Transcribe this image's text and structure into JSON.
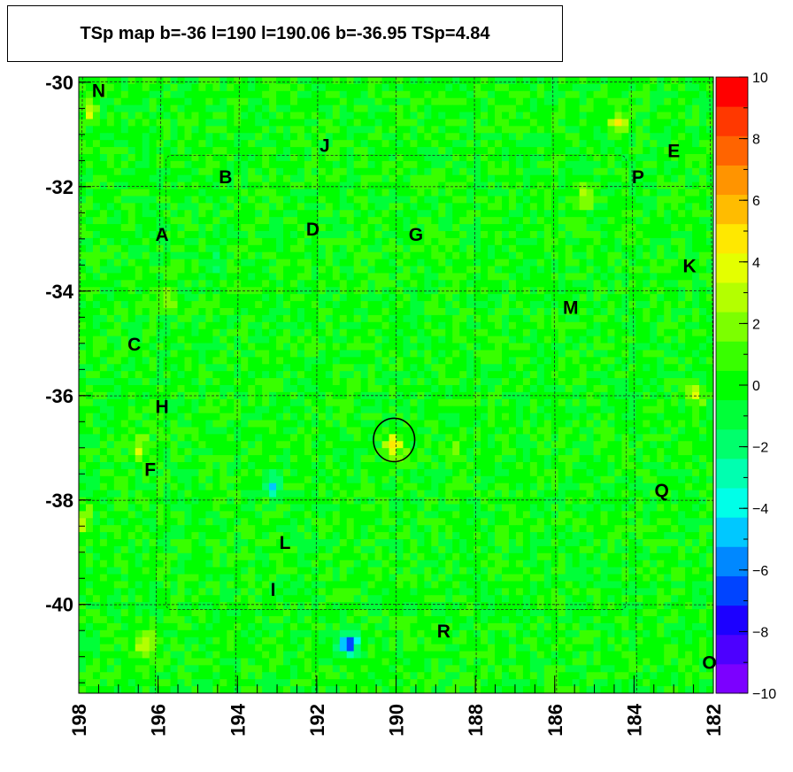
{
  "title": "TSp map b=-36 l=190 l=190.06 b=-36.95 TSp=4.84",
  "chart_data": {
    "type": "heatmap",
    "title": "TSp map b=-36 l=190 l=190.06 b=-36.95 TSp=4.84",
    "xlabel": "",
    "ylabel": "",
    "x_axis_reversed": true,
    "xlim": [
      198,
      182
    ],
    "ylim": [
      -41.7,
      -29.9
    ],
    "zlim": [
      -10,
      10
    ],
    "x_ticks": [
      "198",
      "196",
      "194",
      "192",
      "190",
      "188",
      "186",
      "184",
      "182"
    ],
    "y_ticks": [
      "-30",
      "-32",
      "-34",
      "-36",
      "-38",
      "-40"
    ],
    "z_ticks": [
      "10",
      "8",
      "6",
      "4",
      "2",
      "0",
      "−2",
      "−4",
      "−6",
      "−8",
      "−10"
    ],
    "colorbar_colors": [
      "#7c00ff",
      "#4c00ff",
      "#1c00ff",
      "#0044ff",
      "#0088ff",
      "#00c8ff",
      "#00ffe8",
      "#00ffb0",
      "#00ff6c",
      "#00ff38",
      "#00ff00",
      "#38ff00",
      "#7cff00",
      "#b4ff00",
      "#e4ff00",
      "#ffe800",
      "#ffbc00",
      "#ff9400",
      "#ff6400",
      "#ff3800",
      "#ff0000"
    ],
    "background_level": 0,
    "hotspots": [
      {
        "l": 190.06,
        "b": -36.95,
        "value": 4.84
      },
      {
        "l": 191.2,
        "b": -40.75,
        "value": -7
      },
      {
        "l": 193.1,
        "b": -37.7,
        "value": -4
      },
      {
        "l": 196.3,
        "b": -40.8,
        "value": 4
      },
      {
        "l": 197.7,
        "b": -30.6,
        "value": 3
      },
      {
        "l": 184.4,
        "b": -30.8,
        "value": 4
      },
      {
        "l": 185.2,
        "b": -32.2,
        "value": 3
      },
      {
        "l": 182.5,
        "b": -36.0,
        "value": 3
      },
      {
        "l": 197.9,
        "b": -38.4,
        "value": 3
      },
      {
        "l": 196.5,
        "b": -37.0,
        "value": 3
      },
      {
        "l": 188.5,
        "b": -37.1,
        "value": 2
      },
      {
        "l": 194.6,
        "b": -33.5,
        "value": -2
      },
      {
        "l": 195.8,
        "b": -34.2,
        "value": 2
      }
    ],
    "circle": {
      "l": 190.05,
      "b": -36.85,
      "radius_deg": 0.52
    },
    "sources": [
      {
        "label": "N",
        "l": 197.5,
        "b": -30.15
      },
      {
        "label": "J",
        "l": 191.8,
        "b": -31.2
      },
      {
        "label": "E",
        "l": 183.0,
        "b": -31.3
      },
      {
        "label": "B",
        "l": 194.3,
        "b": -31.8
      },
      {
        "label": "P",
        "l": 183.9,
        "b": -31.8
      },
      {
        "label": "A",
        "l": 195.9,
        "b": -32.9
      },
      {
        "label": "D",
        "l": 192.1,
        "b": -32.8
      },
      {
        "label": "G",
        "l": 189.5,
        "b": -32.9
      },
      {
        "label": "K",
        "l": 182.6,
        "b": -33.5
      },
      {
        "label": "M",
        "l": 185.6,
        "b": -34.3
      },
      {
        "label": "C",
        "l": 196.6,
        "b": -35.0
      },
      {
        "label": "H",
        "l": 195.9,
        "b": -36.2
      },
      {
        "label": "F",
        "l": 196.2,
        "b": -37.4
      },
      {
        "label": "Q",
        "l": 183.3,
        "b": -37.8
      },
      {
        "label": "L",
        "l": 192.8,
        "b": -38.8
      },
      {
        "label": "I",
        "l": 193.1,
        "b": -39.7
      },
      {
        "label": "R",
        "l": 188.8,
        "b": -40.5
      },
      {
        "label": "O",
        "l": 182.1,
        "b": -41.1
      }
    ]
  }
}
